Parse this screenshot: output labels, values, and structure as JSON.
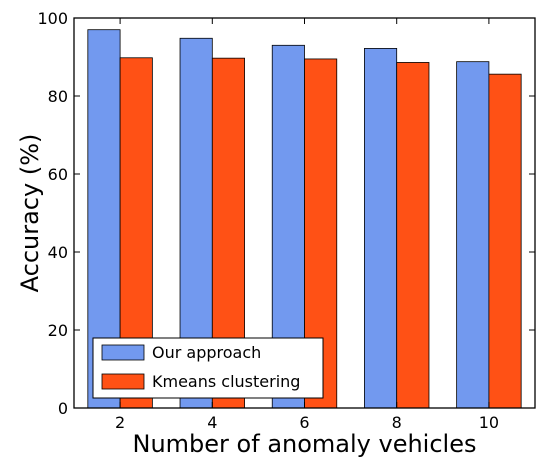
{
  "chart_data": {
    "type": "bar",
    "title": "",
    "xlabel": "Number of anomaly vehicles",
    "ylabel": "Accuracy (%)",
    "categories": [
      "2",
      "4",
      "6",
      "8",
      "10"
    ],
    "ylim": [
      0,
      100
    ],
    "yticks": [
      0,
      20,
      40,
      60,
      80,
      100
    ],
    "grid": false,
    "legend_position": "bottom-left",
    "series": [
      {
        "name": "Our approach",
        "color": "#7299ef",
        "values": [
          97.0,
          94.8,
          93.0,
          92.2,
          88.8
        ]
      },
      {
        "name": "Kmeans clustering",
        "color": "#ff5115",
        "values": [
          89.8,
          89.7,
          89.5,
          88.6,
          85.6
        ]
      }
    ]
  }
}
